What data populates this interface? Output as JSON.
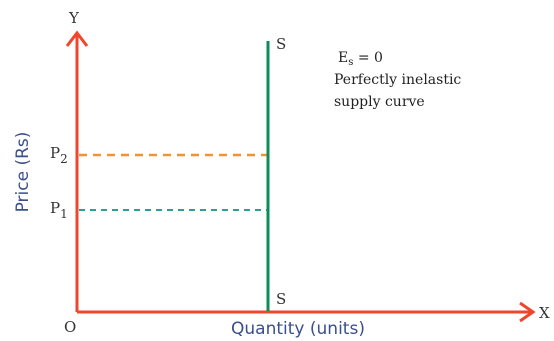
{
  "diagram": {
    "y_axis_letter": "Y",
    "x_axis_letter": "X",
    "origin": "O",
    "y_axis_label": "Price (Rs)",
    "x_axis_label": "Quantity (units)",
    "supply_top_label": "S",
    "supply_bottom_label": "S",
    "price_labels": {
      "p1": "P",
      "p1_sub": "1",
      "p2": "P",
      "p2_sub": "2"
    },
    "elasticity": {
      "main": "E",
      "sub": "s",
      "rest": " = 0"
    },
    "description_lines": [
      "Perfectly inelastic",
      "supply curve"
    ]
  },
  "colors": {
    "axis": "#f0462e",
    "supply": "#0e8c55",
    "p2_line": "#f5922f",
    "p1_line": "#2aa197",
    "axis_label": "#3a4f8c"
  }
}
